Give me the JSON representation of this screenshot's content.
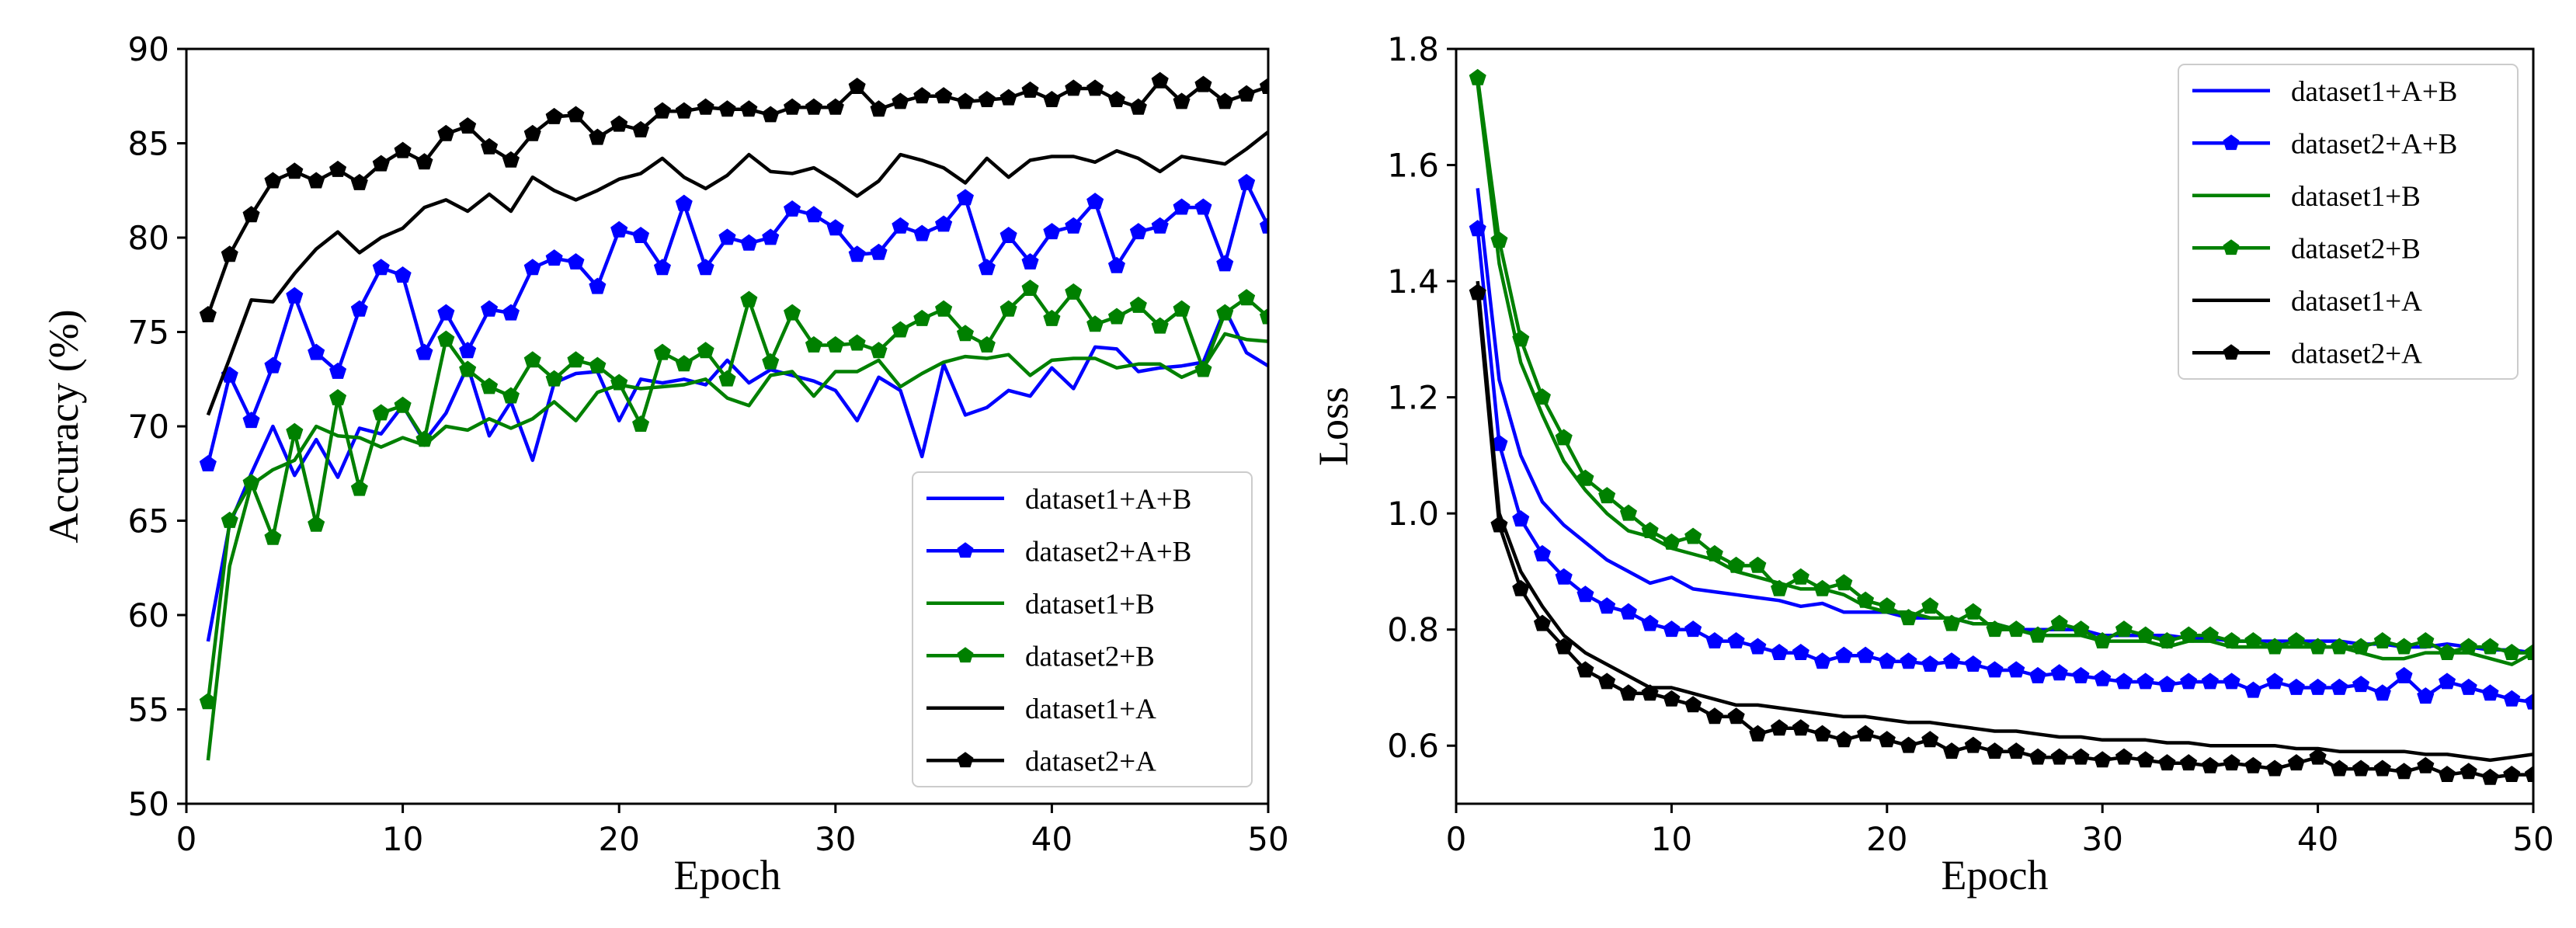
{
  "chart_data": [
    {
      "type": "line",
      "xlabel": "Epoch",
      "ylabel": "Accuracy (%)",
      "xlim": [
        0,
        50
      ],
      "ylim": [
        50,
        90
      ],
      "xticks": [
        0,
        10,
        20,
        30,
        40,
        50
      ],
      "yticks": [
        50,
        55,
        60,
        65,
        70,
        75,
        80,
        85,
        90
      ],
      "grid": false,
      "legend_position": "lower-right",
      "x": [
        1,
        2,
        3,
        4,
        5,
        6,
        7,
        8,
        9,
        10,
        11,
        12,
        13,
        14,
        15,
        16,
        17,
        18,
        19,
        20,
        21,
        22,
        23,
        24,
        25,
        26,
        27,
        28,
        29,
        30,
        31,
        32,
        33,
        34,
        35,
        36,
        37,
        38,
        39,
        40,
        41,
        42,
        43,
        44,
        45,
        46,
        47,
        48,
        49,
        50
      ],
      "series": [
        {
          "name": "dataset1+A+B",
          "color": "#0000ff",
          "marker": "none",
          "values": [
            58.6,
            64.8,
            67.5,
            70.0,
            67.4,
            69.3,
            67.3,
            69.9,
            69.6,
            71.1,
            69.2,
            70.7,
            73.2,
            69.5,
            71.3,
            68.2,
            72.3,
            72.8,
            72.9,
            70.3,
            72.5,
            72.3,
            72.5,
            72.2,
            73.5,
            72.3,
            73.0,
            72.7,
            72.4,
            71.9,
            70.3,
            72.6,
            71.9,
            68.4,
            73.3,
            70.6,
            71.0,
            71.9,
            71.6,
            73.1,
            72.0,
            74.2,
            74.1,
            72.9,
            73.1,
            73.2,
            73.4,
            76.2,
            73.9,
            73.2
          ]
        },
        {
          "name": "dataset2+A+B",
          "color": "#0000ff",
          "marker": "pentagon",
          "values": [
            68.0,
            72.7,
            70.3,
            73.2,
            76.9,
            73.9,
            72.9,
            76.2,
            78.4,
            78.0,
            73.9,
            76.0,
            74.0,
            76.2,
            76.0,
            78.4,
            78.9,
            78.7,
            77.4,
            80.4,
            80.1,
            78.4,
            81.8,
            78.4,
            80.0,
            79.7,
            80.0,
            81.5,
            81.2,
            80.5,
            79.1,
            79.2,
            80.6,
            80.2,
            80.7,
            82.1,
            78.4,
            80.1,
            78.7,
            80.3,
            80.6,
            81.9,
            78.5,
            80.3,
            80.6,
            81.6,
            81.6,
            78.6,
            82.9,
            80.6
          ]
        },
        {
          "name": "dataset1+B",
          "color": "#008000",
          "marker": "none",
          "values": [
            52.3,
            62.6,
            66.9,
            67.7,
            68.2,
            70.0,
            69.5,
            69.4,
            68.9,
            69.4,
            69.0,
            70.0,
            69.8,
            70.4,
            69.9,
            70.4,
            71.3,
            70.3,
            71.8,
            72.2,
            72.0,
            72.1,
            72.2,
            72.5,
            71.5,
            71.1,
            72.7,
            72.9,
            71.6,
            72.9,
            72.9,
            73.5,
            72.1,
            72.8,
            73.4,
            73.7,
            73.6,
            73.8,
            72.7,
            73.5,
            73.6,
            73.6,
            73.1,
            73.3,
            73.3,
            72.6,
            73.1,
            74.9,
            74.6,
            74.5
          ]
        },
        {
          "name": "dataset2+B",
          "color": "#008000",
          "marker": "pentagon",
          "values": [
            55.4,
            65.0,
            67.0,
            64.1,
            69.7,
            64.8,
            71.5,
            66.7,
            70.7,
            71.1,
            69.3,
            74.6,
            73.0,
            72.1,
            71.6,
            73.5,
            72.5,
            73.5,
            73.2,
            72.3,
            70.1,
            73.9,
            73.3,
            74.0,
            72.5,
            76.7,
            73.4,
            76.0,
            74.3,
            74.3,
            74.4,
            74.0,
            75.1,
            75.7,
            76.2,
            74.9,
            74.3,
            76.2,
            77.3,
            75.7,
            77.1,
            75.4,
            75.8,
            76.4,
            75.3,
            76.2,
            73.0,
            76.0,
            76.8,
            75.8
          ]
        },
        {
          "name": "dataset1+A",
          "color": "#000000",
          "marker": "none",
          "values": [
            70.6,
            73.6,
            76.7,
            76.6,
            78.1,
            79.4,
            80.3,
            79.2,
            80.0,
            80.5,
            81.6,
            82.0,
            81.4,
            82.3,
            81.4,
            83.2,
            82.5,
            82.0,
            82.5,
            83.1,
            83.4,
            84.2,
            83.2,
            82.6,
            83.3,
            84.4,
            83.5,
            83.4,
            83.7,
            83.0,
            82.2,
            83.0,
            84.4,
            84.1,
            83.7,
            82.9,
            84.2,
            83.2,
            84.1,
            84.3,
            84.3,
            84.0,
            84.6,
            84.2,
            83.5,
            84.3,
            84.1,
            83.9,
            84.7,
            85.6
          ]
        },
        {
          "name": "dataset2+A",
          "color": "#000000",
          "marker": "pentagon",
          "values": [
            75.9,
            79.1,
            81.2,
            83.0,
            83.5,
            83.0,
            83.6,
            82.9,
            83.9,
            84.6,
            84.0,
            85.5,
            85.9,
            84.8,
            84.1,
            85.5,
            86.4,
            86.5,
            85.3,
            86.0,
            85.7,
            86.7,
            86.7,
            86.9,
            86.8,
            86.8,
            86.5,
            86.9,
            86.9,
            86.9,
            88.0,
            86.8,
            87.2,
            87.5,
            87.5,
            87.2,
            87.3,
            87.4,
            87.8,
            87.3,
            87.9,
            87.9,
            87.3,
            86.9,
            88.3,
            87.2,
            88.1,
            87.2,
            87.6,
            88.0
          ]
        }
      ]
    },
    {
      "type": "line",
      "xlabel": "Epoch",
      "ylabel": "Loss",
      "xlim": [
        0,
        50
      ],
      "ylim": [
        0.5,
        1.8
      ],
      "xticks": [
        0,
        10,
        20,
        30,
        40,
        50
      ],
      "yticks": [
        0.6,
        0.8,
        1.0,
        1.2,
        1.4,
        1.6,
        1.8
      ],
      "grid": false,
      "legend_position": "upper-right",
      "x": [
        1,
        2,
        3,
        4,
        5,
        6,
        7,
        8,
        9,
        10,
        11,
        12,
        13,
        14,
        15,
        16,
        17,
        18,
        19,
        20,
        21,
        22,
        23,
        24,
        25,
        26,
        27,
        28,
        29,
        30,
        31,
        32,
        33,
        34,
        35,
        36,
        37,
        38,
        39,
        40,
        41,
        42,
        43,
        44,
        45,
        46,
        47,
        48,
        49,
        50
      ],
      "series": [
        {
          "name": "dataset1+A+B",
          "color": "#0000ff",
          "marker": "none",
          "values": [
            1.56,
            1.23,
            1.1,
            1.02,
            0.98,
            0.95,
            0.92,
            0.9,
            0.88,
            0.89,
            0.87,
            0.865,
            0.86,
            0.855,
            0.85,
            0.84,
            0.845,
            0.83,
            0.83,
            0.83,
            0.82,
            0.82,
            0.82,
            0.81,
            0.81,
            0.8,
            0.8,
            0.8,
            0.8,
            0.79,
            0.79,
            0.79,
            0.79,
            0.785,
            0.785,
            0.78,
            0.78,
            0.78,
            0.78,
            0.78,
            0.78,
            0.775,
            0.775,
            0.77,
            0.77,
            0.775,
            0.77,
            0.765,
            0.765,
            0.76
          ]
        },
        {
          "name": "dataset2+A+B",
          "color": "#0000ff",
          "marker": "pentagon",
          "values": [
            1.49,
            1.12,
            0.99,
            0.93,
            0.89,
            0.86,
            0.84,
            0.83,
            0.81,
            0.8,
            0.8,
            0.78,
            0.78,
            0.77,
            0.76,
            0.76,
            0.745,
            0.755,
            0.755,
            0.745,
            0.745,
            0.74,
            0.745,
            0.74,
            0.73,
            0.73,
            0.72,
            0.725,
            0.72,
            0.715,
            0.71,
            0.71,
            0.705,
            0.71,
            0.71,
            0.71,
            0.695,
            0.71,
            0.7,
            0.7,
            0.7,
            0.705,
            0.69,
            0.72,
            0.685,
            0.71,
            0.7,
            0.69,
            0.68,
            0.675
          ]
        },
        {
          "name": "dataset1+B",
          "color": "#008000",
          "marker": "none",
          "values": [
            1.74,
            1.43,
            1.26,
            1.17,
            1.09,
            1.04,
            1.0,
            0.97,
            0.96,
            0.94,
            0.93,
            0.92,
            0.9,
            0.89,
            0.88,
            0.87,
            0.87,
            0.86,
            0.84,
            0.83,
            0.83,
            0.82,
            0.82,
            0.81,
            0.81,
            0.8,
            0.79,
            0.79,
            0.79,
            0.78,
            0.78,
            0.78,
            0.77,
            0.78,
            0.78,
            0.77,
            0.77,
            0.77,
            0.77,
            0.77,
            0.77,
            0.76,
            0.75,
            0.75,
            0.76,
            0.76,
            0.76,
            0.75,
            0.74,
            0.76
          ]
        },
        {
          "name": "dataset2+B",
          "color": "#008000",
          "marker": "pentagon",
          "values": [
            1.75,
            1.47,
            1.3,
            1.2,
            1.13,
            1.06,
            1.03,
            1.0,
            0.97,
            0.95,
            0.96,
            0.93,
            0.91,
            0.91,
            0.87,
            0.89,
            0.87,
            0.88,
            0.85,
            0.84,
            0.82,
            0.84,
            0.81,
            0.83,
            0.8,
            0.8,
            0.79,
            0.81,
            0.8,
            0.78,
            0.8,
            0.79,
            0.78,
            0.79,
            0.79,
            0.78,
            0.78,
            0.77,
            0.78,
            0.77,
            0.77,
            0.77,
            0.78,
            0.77,
            0.78,
            0.76,
            0.77,
            0.77,
            0.76,
            0.76
          ]
        },
        {
          "name": "dataset1+A",
          "color": "#000000",
          "marker": "none",
          "values": [
            1.4,
            1.0,
            0.9,
            0.84,
            0.79,
            0.76,
            0.74,
            0.72,
            0.7,
            0.7,
            0.69,
            0.68,
            0.67,
            0.67,
            0.665,
            0.66,
            0.655,
            0.65,
            0.65,
            0.645,
            0.64,
            0.64,
            0.635,
            0.63,
            0.625,
            0.625,
            0.62,
            0.615,
            0.615,
            0.61,
            0.61,
            0.61,
            0.605,
            0.605,
            0.6,
            0.6,
            0.6,
            0.6,
            0.595,
            0.595,
            0.59,
            0.59,
            0.59,
            0.59,
            0.585,
            0.585,
            0.58,
            0.575,
            0.58,
            0.585
          ]
        },
        {
          "name": "dataset2+A",
          "color": "#000000",
          "marker": "pentagon",
          "values": [
            1.38,
            0.98,
            0.87,
            0.81,
            0.77,
            0.73,
            0.71,
            0.69,
            0.69,
            0.68,
            0.67,
            0.65,
            0.65,
            0.62,
            0.63,
            0.63,
            0.62,
            0.61,
            0.62,
            0.61,
            0.6,
            0.61,
            0.59,
            0.6,
            0.59,
            0.59,
            0.58,
            0.58,
            0.58,
            0.575,
            0.58,
            0.575,
            0.57,
            0.57,
            0.565,
            0.57,
            0.565,
            0.56,
            0.57,
            0.58,
            0.56,
            0.56,
            0.56,
            0.555,
            0.565,
            0.55,
            0.555,
            0.545,
            0.55,
            0.55
          ]
        }
      ]
    }
  ]
}
